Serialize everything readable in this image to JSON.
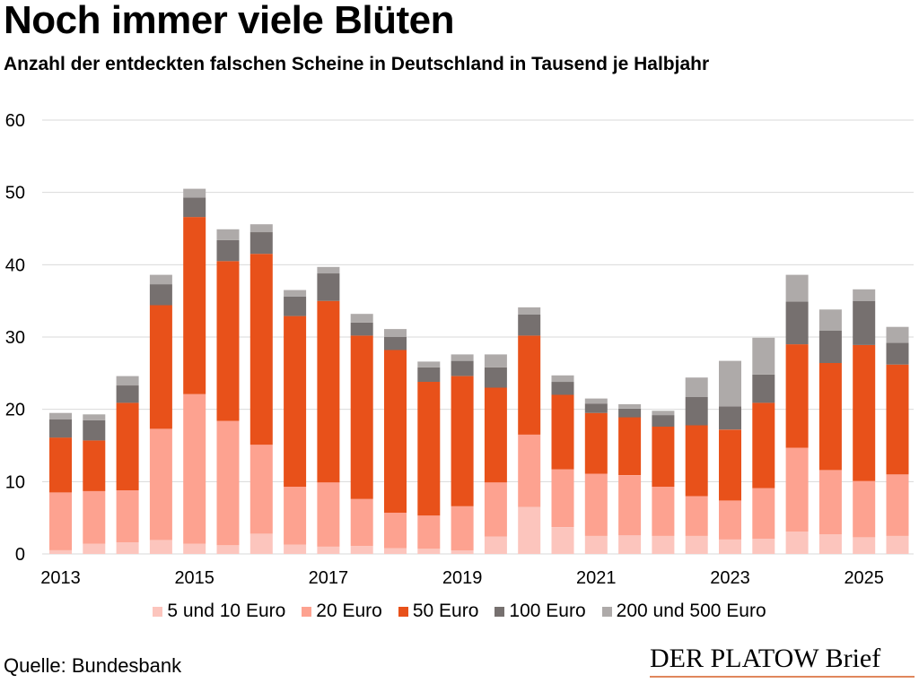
{
  "header": {
    "title": "Noch immer viele Blüten",
    "subtitle": "Anzahl der entdeckten falschen Scheine in Deutschland in Tausend je Halbjahr"
  },
  "footer": {
    "source": "Quelle: Bundesbank",
    "brand": "DER PLATOW Brief"
  },
  "chart_data": {
    "type": "bar",
    "stacked": true,
    "title": "Noch immer viele Blüten",
    "subtitle": "Anzahl der entdeckten falschen Scheine in Deutschland in Tausend je Halbjahr",
    "xlabel": "",
    "ylabel": "",
    "ylim": [
      0,
      60
    ],
    "yticks": [
      0,
      10,
      20,
      30,
      40,
      50,
      60
    ],
    "grid": true,
    "legend_position": "bottom",
    "categories": [
      "2013 H1",
      "2013 H2",
      "2014 H1",
      "2014 H2",
      "2015 H1",
      "2015 H2",
      "2016 H1",
      "2016 H2",
      "2017 H1",
      "2017 H2",
      "2018 H1",
      "2018 H2",
      "2019 H1",
      "2019 H2",
      "2020 H1",
      "2020 H2",
      "2021 H1",
      "2021 H2",
      "2022 H1",
      "2022 H2",
      "2023 H1",
      "2023 H2",
      "2024 H1",
      "2024 H2",
      "2025 H1",
      "2025 H2"
    ],
    "xtick_labels": [
      {
        "index": 0,
        "label": "2013"
      },
      {
        "index": 4,
        "label": "2015"
      },
      {
        "index": 8,
        "label": "2017"
      },
      {
        "index": 12,
        "label": "2019"
      },
      {
        "index": 16,
        "label": "2021"
      },
      {
        "index": 20,
        "label": "2023"
      },
      {
        "index": 24,
        "label": "2025"
      }
    ],
    "series": [
      {
        "name": "5 und 10 Euro",
        "color": "#fcc5bd",
        "values": [
          0.5,
          1.4,
          1.6,
          1.9,
          1.4,
          1.2,
          2.8,
          1.3,
          1.0,
          1.1,
          0.8,
          0.7,
          0.5,
          2.4,
          6.5,
          3.7,
          2.5,
          2.6,
          2.5,
          2.5,
          2.0,
          2.1,
          3.1,
          2.7,
          2.3,
          2.5
        ]
      },
      {
        "name": "20 Euro",
        "color": "#fda290",
        "values": [
          8.0,
          7.3,
          7.2,
          15.4,
          20.7,
          17.2,
          12.3,
          8.0,
          8.9,
          6.5,
          4.9,
          4.6,
          6.1,
          7.5,
          10.0,
          8.0,
          8.6,
          8.3,
          6.8,
          5.5,
          5.4,
          7.0,
          11.6,
          8.9,
          7.8,
          8.5
        ]
      },
      {
        "name": "50 Euro",
        "color": "#e8511a",
        "values": [
          7.6,
          7.0,
          12.1,
          17.1,
          24.5,
          22.1,
          26.4,
          23.6,
          25.1,
          22.6,
          22.5,
          18.5,
          18.0,
          13.1,
          13.7,
          10.3,
          8.4,
          8.0,
          8.3,
          9.8,
          9.8,
          11.8,
          14.3,
          14.8,
          18.8,
          15.2
        ]
      },
      {
        "name": "100 Euro",
        "color": "#76706f",
        "values": [
          2.5,
          2.8,
          2.4,
          2.9,
          2.7,
          2.9,
          3.0,
          2.7,
          3.8,
          1.8,
          1.8,
          2.0,
          2.1,
          2.8,
          2.9,
          1.8,
          1.3,
          1.2,
          1.6,
          3.9,
          3.2,
          3.9,
          5.9,
          4.5,
          6.1,
          3.0
        ]
      },
      {
        "name": "200 und 500 Euro",
        "color": "#aeaaa9",
        "values": [
          0.9,
          0.8,
          1.3,
          1.3,
          1.2,
          1.5,
          1.1,
          0.9,
          0.9,
          1.2,
          1.1,
          0.8,
          0.9,
          1.8,
          1.0,
          0.9,
          0.7,
          0.6,
          0.6,
          2.7,
          6.3,
          5.1,
          3.7,
          2.9,
          1.6,
          2.2
        ]
      }
    ]
  },
  "colors": {
    "grid": "#d9d9d9",
    "brand_line": "#e0875c"
  }
}
